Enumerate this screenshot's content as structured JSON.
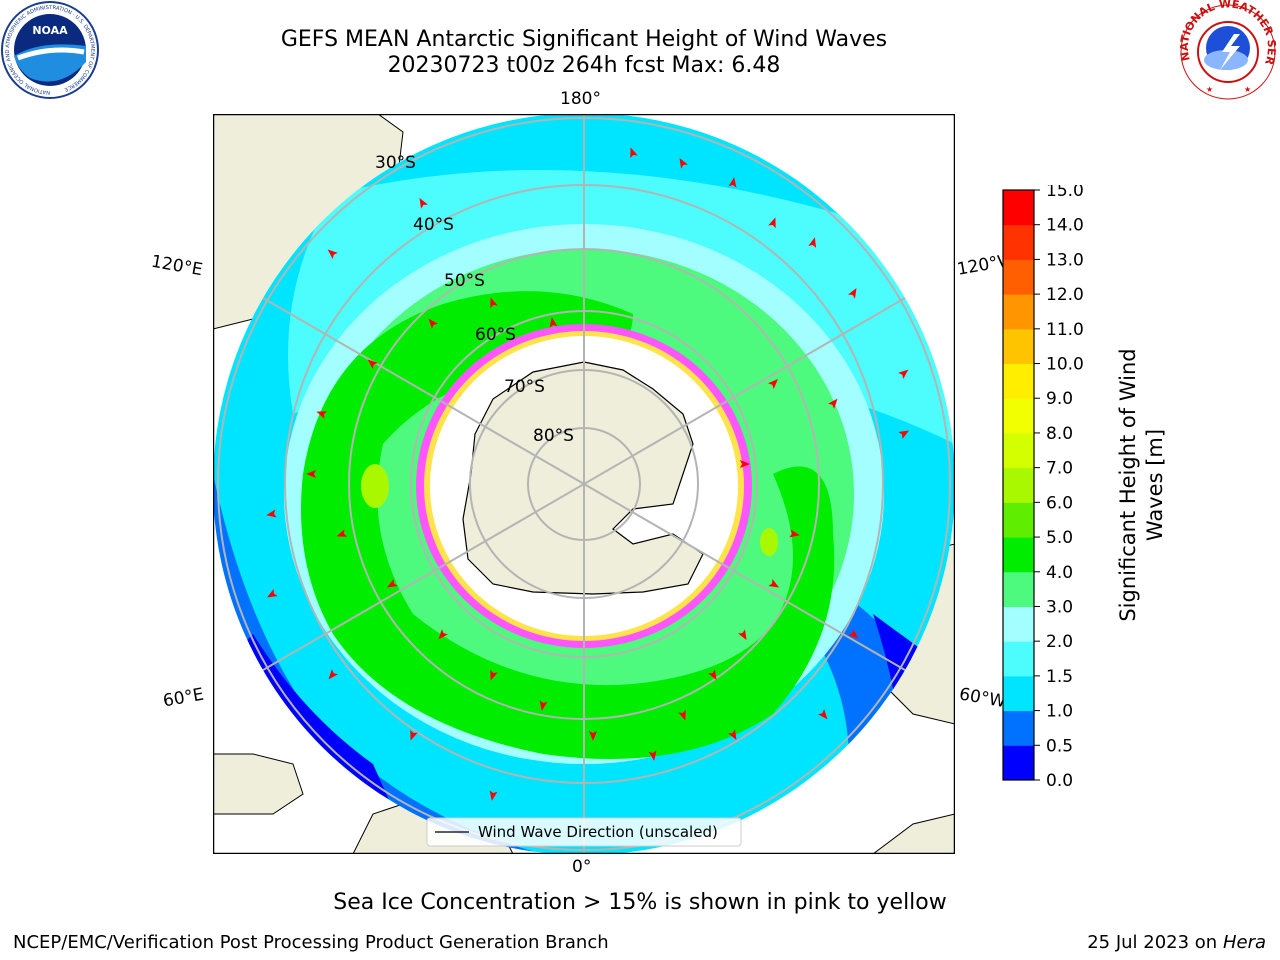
{
  "header": {
    "title_line1": "GEFS MEAN Antarctic Significant Height of Wind Waves",
    "title_line2": "20230723 t00z 264h fcst   Max: 6.48"
  },
  "logos": {
    "noaa_text": "NOAA",
    "noaa_ring": "NATIONAL OCEANIC AND ATMOSPHERIC ADMINISTRATION · U.S. DEPARTMENT OF COMMERCE",
    "nws_ring": "NATIONAL WEATHER SERVICE"
  },
  "map": {
    "projection": "south-polar-stereographic",
    "longitude_labels": {
      "top": "180°",
      "bottom": "0°",
      "upper_left": "120°E",
      "lower_left": "60°E",
      "upper_right": "120°W",
      "lower_right": "60°W"
    },
    "latitude_labels": [
      "30°S",
      "40°S",
      "50°S",
      "60°S",
      "70°S",
      "80°S"
    ],
    "legend_label": "Wind Wave Direction (unscaled)",
    "colors": {
      "land": "#efeedb",
      "ice_low": "#ff55ff",
      "ice_high": "#ffe34a",
      "gridline": "#b4b4b4",
      "arrow": "#ff0000"
    }
  },
  "colorbar": {
    "title": "Significant Height of Wind Waves [m]",
    "ticks": [
      "0.0",
      "0.5",
      "1.0",
      "1.5",
      "2.0",
      "3.0",
      "4.0",
      "5.0",
      "6.0",
      "7.0",
      "8.0",
      "9.0",
      "10.0",
      "11.0",
      "12.0",
      "13.0",
      "14.0",
      "15.0"
    ],
    "colors": [
      "#0000ff",
      "#0072ff",
      "#00e5ff",
      "#4dfdfd",
      "#a3ffff",
      "#4dfa7e",
      "#00ed00",
      "#5fee00",
      "#a9f800",
      "#d4ff00",
      "#f2ff00",
      "#ffee00",
      "#ffc400",
      "#ff9500",
      "#ff5f00",
      "#ff3200",
      "#ff0000"
    ]
  },
  "caption": "Sea Ice Concentration > 15% is shown in pink to yellow",
  "footer": {
    "left": "NCEP/EMC/Verification Post Processing Product Generation Branch",
    "right_date": "25 Jul 2023 on ",
    "right_host": "Hera"
  }
}
